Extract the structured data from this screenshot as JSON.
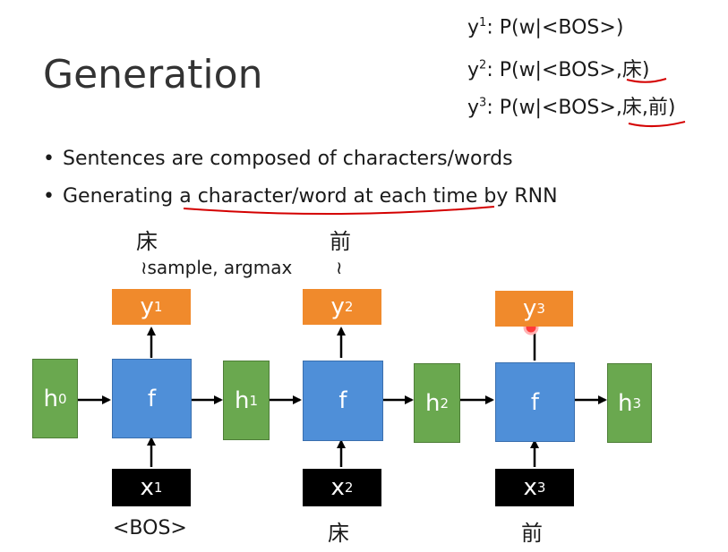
{
  "title": "Generation",
  "formulas": [
    {
      "pre": "y",
      "sup": "1",
      "post": ": P(w|<BOS>)"
    },
    {
      "pre": "y",
      "sup": "2",
      "post": ": P(w|<BOS>,床)"
    },
    {
      "pre": "y",
      "sup": "3",
      "post": ": P(w|<BOS>,床,前)"
    }
  ],
  "bullets": [
    "Sentences are composed of characters/words",
    "Generating a character/word at each time by RNN"
  ],
  "diagram": {
    "top_words": [
      "床",
      "前"
    ],
    "sample_label": "≀sample, argmax",
    "tilde": "≀",
    "h": [
      {
        "base": "h",
        "sup": "0"
      },
      {
        "base": "h",
        "sup": "1"
      },
      {
        "base": "h",
        "sup": "2"
      },
      {
        "base": "h",
        "sup": "3"
      }
    ],
    "f": [
      "f",
      "f",
      "f"
    ],
    "y": [
      {
        "base": "y",
        "sup": "1"
      },
      {
        "base": "y",
        "sup": "2"
      },
      {
        "base": "y",
        "sup": "3"
      }
    ],
    "x": [
      {
        "base": "x",
        "sup": "1"
      },
      {
        "base": "x",
        "sup": "2"
      },
      {
        "base": "x",
        "sup": "3"
      }
    ],
    "inputs": [
      "<BOS>",
      "床",
      "前"
    ]
  },
  "colors": {
    "hidden": "#6aa84f",
    "function": "#4f8fd8",
    "output": "#f08a2c",
    "input": "#000000",
    "annotation": "#d40000"
  }
}
